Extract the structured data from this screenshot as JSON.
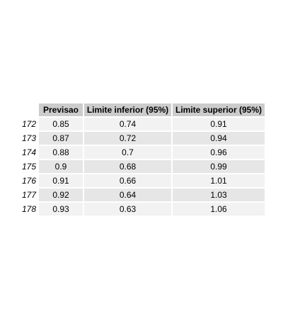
{
  "chart_data": {
    "type": "table",
    "columns": [
      "Previsao",
      "Limite inferior (95%)",
      "Limite superior (95%)"
    ],
    "rows": [
      {
        "label": "172",
        "values": [
          "0.85",
          "0.74",
          "0.91"
        ]
      },
      {
        "label": "173",
        "values": [
          "0.87",
          "0.72",
          "0.94"
        ]
      },
      {
        "label": "174",
        "values": [
          "0.88",
          "0.7",
          "0.96"
        ]
      },
      {
        "label": "175",
        "values": [
          "0.9",
          "0.68",
          "0.99"
        ]
      },
      {
        "label": "176",
        "values": [
          "0.91",
          "0.66",
          "1.01"
        ]
      },
      {
        "label": "177",
        "values": [
          "0.92",
          "0.64",
          "1.03"
        ]
      },
      {
        "label": "178",
        "values": [
          "0.93",
          "0.63",
          "1.06"
        ]
      }
    ]
  }
}
